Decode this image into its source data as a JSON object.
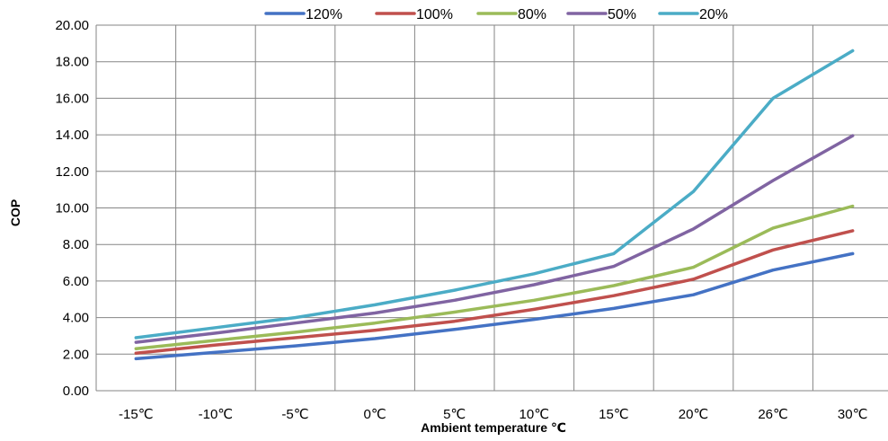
{
  "chart_data": {
    "type": "line",
    "title": "",
    "xlabel": "Ambient temperature ℃",
    "ylabel": "COP",
    "categories": [
      "-15℃",
      "-10℃",
      "-5℃",
      "0℃",
      "5℃",
      "10℃",
      "15℃",
      "20℃",
      "26℃",
      "30℃"
    ],
    "ylim": [
      0,
      20
    ],
    "yticks": [
      "0.00",
      "2.00",
      "4.00",
      "6.00",
      "8.00",
      "10.00",
      "12.00",
      "14.00",
      "16.00",
      "18.00",
      "20.00"
    ],
    "grid": true,
    "legend_position": "top",
    "series": [
      {
        "name": "120%",
        "color": "#4472C4",
        "values": [
          1.75,
          2.1,
          2.45,
          2.85,
          3.35,
          3.9,
          4.5,
          5.25,
          6.6,
          7.5
        ]
      },
      {
        "name": "100%",
        "color": "#C0504D",
        "values": [
          2.05,
          2.5,
          2.9,
          3.3,
          3.8,
          4.45,
          5.2,
          6.1,
          7.7,
          8.75
        ]
      },
      {
        "name": "80%",
        "color": "#9BBB59",
        "values": [
          2.3,
          2.75,
          3.2,
          3.7,
          4.3,
          4.95,
          5.75,
          6.75,
          8.9,
          10.1
        ]
      },
      {
        "name": "50%",
        "color": "#8064A2",
        "values": [
          2.65,
          3.15,
          3.7,
          4.25,
          4.95,
          5.8,
          6.8,
          8.85,
          11.5,
          13.95
        ]
      },
      {
        "name": "20%",
        "color": "#4BACC6",
        "values": [
          2.9,
          3.45,
          4.0,
          4.7,
          5.5,
          6.4,
          7.5,
          10.9,
          16.0,
          18.6
        ]
      }
    ]
  }
}
